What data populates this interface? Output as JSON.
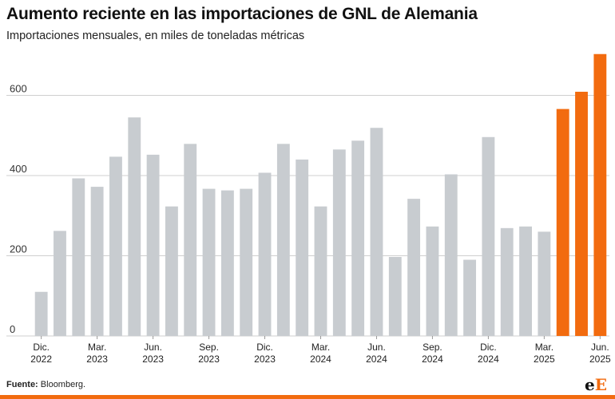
{
  "title": "Aumento reciente en las importaciones de GNL de Alemania",
  "subtitle": "Importaciones mensuales, en miles de toneladas métricas",
  "footer": {
    "source_label": "Fuente:",
    "source_value": " Bloomberg."
  },
  "logo": {
    "part1": "e",
    "part2": "E"
  },
  "colors": {
    "bar": "#c8ccd0",
    "highlight": "#f26b0f",
    "grid": "#cfcfcf",
    "accent": "#f26b0f"
  },
  "chart_data": {
    "type": "bar",
    "title": "Aumento reciente en las importaciones de GNL de Alemania",
    "subtitle": "Importaciones mensuales, en miles de toneladas métricas",
    "xlabel": "",
    "ylabel": "",
    "ylim": [
      0,
      700
    ],
    "yticks": [
      0,
      200,
      400,
      600
    ],
    "grid": true,
    "legend": "none",
    "categories": [
      "Dic. 2022",
      "Ene. 2023",
      "Feb. 2023",
      "Mar. 2023",
      "Abr. 2023",
      "May. 2023",
      "Jun. 2023",
      "Jul. 2023",
      "Ago. 2023",
      "Sep. 2023",
      "Oct. 2023",
      "Nov. 2023",
      "Dic. 2023",
      "Ene. 2024",
      "Feb. 2024",
      "Mar. 2024",
      "Abr. 2024",
      "May. 2024",
      "Jun. 2024",
      "Jul. 2024",
      "Ago. 2024",
      "Sep. 2024",
      "Oct. 2024",
      "Nov. 2024",
      "Dic. 2024",
      "Ene. 2025",
      "Feb. 2025",
      "Mar. 2025",
      "Abr. 2025",
      "May. 2025",
      "Jun. 2025"
    ],
    "values": [
      110,
      262,
      393,
      372,
      447,
      545,
      452,
      323,
      479,
      367,
      363,
      367,
      407,
      479,
      440,
      323,
      465,
      487,
      519,
      197,
      342,
      273,
      403,
      190,
      496,
      269,
      273,
      260,
      566,
      609,
      703
    ],
    "highlighted_from_index": 28,
    "xtick_labels": [
      {
        "index": 0,
        "line1": "Dic.",
        "line2": "2022"
      },
      {
        "index": 3,
        "line1": "Mar.",
        "line2": "2023"
      },
      {
        "index": 6,
        "line1": "Jun.",
        "line2": "2023"
      },
      {
        "index": 9,
        "line1": "Sep.",
        "line2": "2023"
      },
      {
        "index": 12,
        "line1": "Dic.",
        "line2": "2023"
      },
      {
        "index": 15,
        "line1": "Mar.",
        "line2": "2024"
      },
      {
        "index": 18,
        "line1": "Jun.",
        "line2": "2024"
      },
      {
        "index": 21,
        "line1": "Sep.",
        "line2": "2024"
      },
      {
        "index": 24,
        "line1": "Dic.",
        "line2": "2024"
      },
      {
        "index": 27,
        "line1": "Mar.",
        "line2": "2025"
      },
      {
        "index": 30,
        "line1": "Jun.",
        "line2": "2025"
      }
    ]
  }
}
